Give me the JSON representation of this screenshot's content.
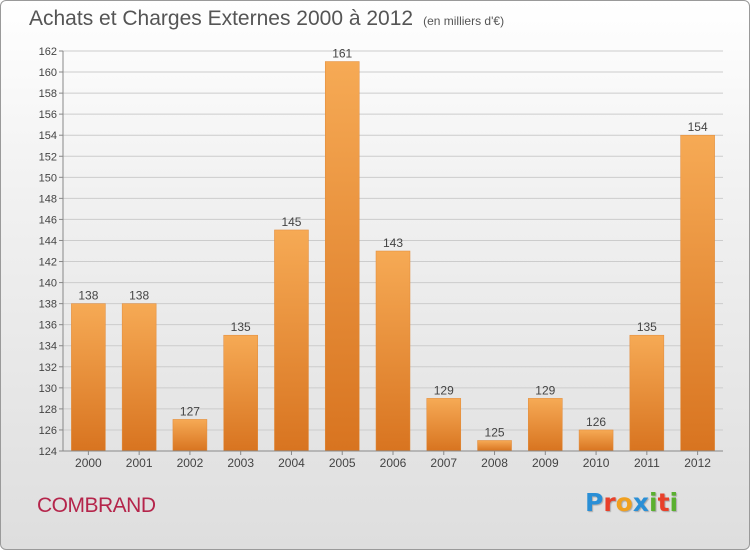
{
  "title": "Achats et Charges Externes 2000 à 2012",
  "unit_note": "(en milliers d'€)",
  "place_name": "COMBRAND",
  "logo": {
    "letters": [
      {
        "ch": "P",
        "color": "#2a8fd6"
      },
      {
        "ch": "r",
        "color": "#e8402a"
      },
      {
        "ch": "o",
        "color": "#f0a020"
      },
      {
        "ch": "x",
        "color": "#2a8fd6"
      },
      {
        "ch": "i",
        "color": "#5ab030"
      },
      {
        "ch": "t",
        "color": "#e8402a"
      },
      {
        "ch": "i",
        "color": "#5ab030"
      }
    ]
  },
  "colors": {
    "bar_light": "#f6aa55",
    "bar_dark": "#d87420",
    "grid": "#cccccc",
    "axis": "#888888",
    "text": "#444444"
  },
  "chart_data": {
    "type": "bar",
    "categories": [
      "2000",
      "2001",
      "2002",
      "2003",
      "2004",
      "2005",
      "2006",
      "2007",
      "2008",
      "2009",
      "2010",
      "2011",
      "2012"
    ],
    "values": [
      138,
      138,
      127,
      135,
      145,
      161,
      143,
      129,
      125,
      129,
      126,
      135,
      154
    ],
    "ylim": [
      124,
      162
    ],
    "yticks": [
      124,
      126,
      128,
      130,
      132,
      134,
      136,
      138,
      140,
      142,
      144,
      146,
      148,
      150,
      152,
      154,
      156,
      158,
      160,
      162
    ],
    "grid": true,
    "data_labels": true
  }
}
